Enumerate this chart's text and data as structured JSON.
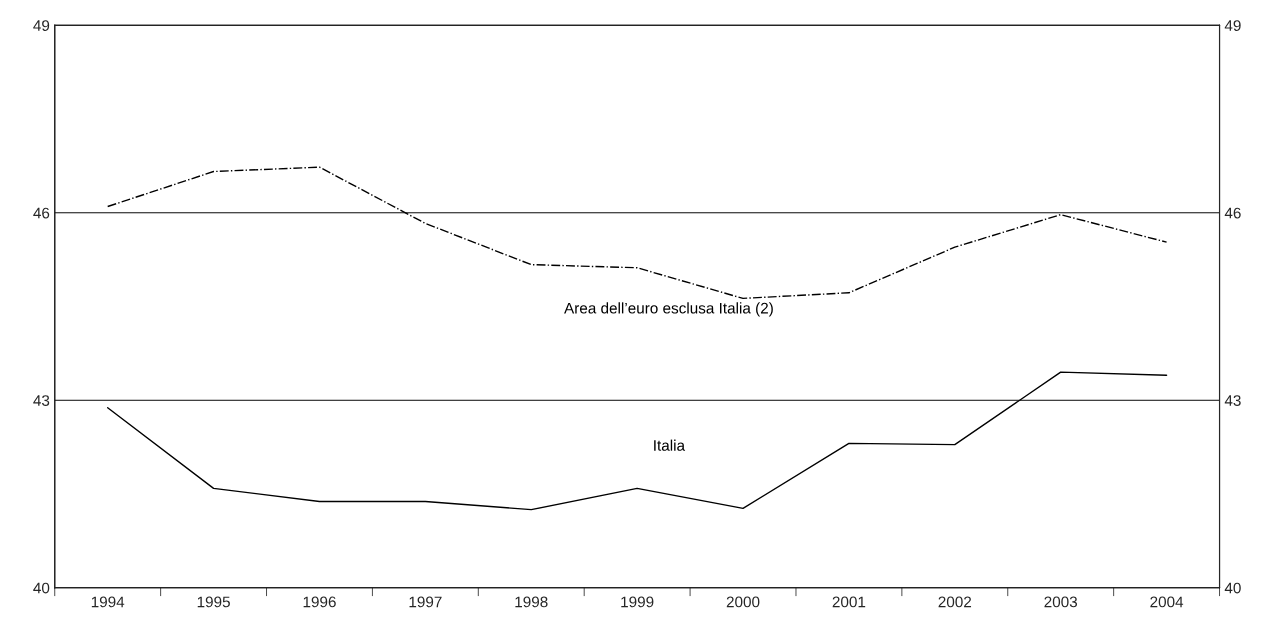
{
  "chart_data": {
    "type": "line",
    "categories": [
      "1994",
      "1995",
      "1996",
      "1997",
      "1998",
      "1999",
      "2000",
      "2001",
      "2002",
      "2003",
      "2004"
    ],
    "series": [
      {
        "name": "Area dell’euro esclusa Italia (2)",
        "color": "#000000",
        "line_style": "dashdot",
        "values": [
          46.1,
          46.66,
          46.73,
          45.83,
          45.17,
          45.12,
          44.63,
          44.72,
          45.45,
          45.97,
          45.53
        ]
      },
      {
        "name": "Italia",
        "color": "#000000",
        "line_style": "solid",
        "values": [
          42.88,
          41.59,
          41.38,
          41.38,
          41.25,
          41.59,
          41.27,
          42.31,
          42.29,
          43.45,
          43.4
        ]
      }
    ],
    "ylim": [
      40,
      49
    ],
    "yticks": [
      40,
      43,
      46,
      49
    ],
    "y2lim": [
      40,
      49
    ],
    "y2ticks": [
      40,
      43,
      46,
      49
    ],
    "grid": "y",
    "legend": false,
    "marker": "none"
  }
}
